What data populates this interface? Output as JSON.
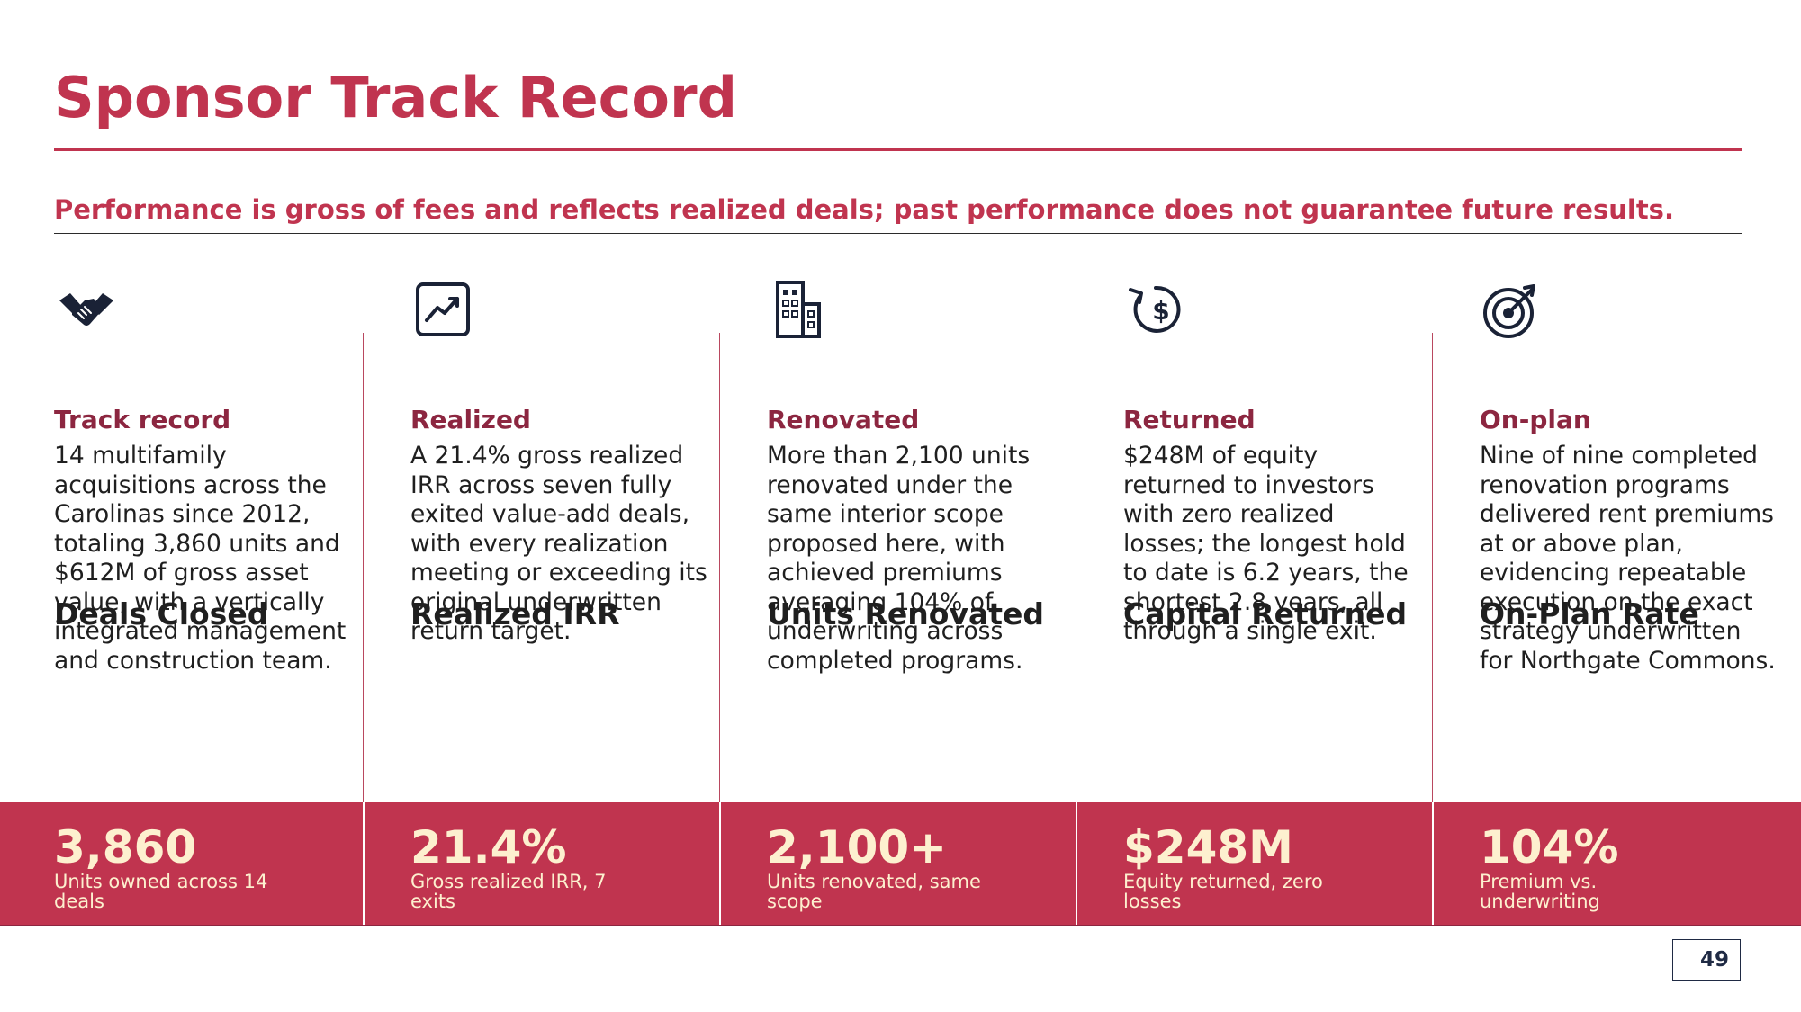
{
  "title": "Sponsor Track Record",
  "subtitle": "Performance is gross of fees and reflects realized deals; past performance does not guarantee future results.",
  "colors": {
    "accent": "#c0344f",
    "accent_dark": "#8c2640",
    "icon": "#1a2236",
    "stat_text": "#fdf0cf"
  },
  "columns": [
    {
      "icon": "handshake-icon",
      "heading": "Deals Closed",
      "subheading": "Track record",
      "body": "14 multifamily acquisitions across the Carolinas since 2012, totaling 3,860 units and $612M of gross asset value, with a vertically integrated management and construction team.",
      "stat_value": "3,860",
      "stat_label": "Units owned across 14 deals"
    },
    {
      "icon": "trend-chart-icon",
      "heading": "Realized IRR",
      "subheading": "Realized",
      "body": "A 21.4% gross realized IRR across seven fully exited value-add deals, with every realization meeting or exceeding its original underwritten return target.",
      "stat_value": "21.4%",
      "stat_label": "Gross realized IRR, 7 exits"
    },
    {
      "icon": "building-icon",
      "heading": "Units Renovated",
      "subheading": "Renovated",
      "body": "More than 2,100 units renovated under the same interior scope proposed here, with achieved premiums averaging 104% of underwriting across completed programs.",
      "stat_value": "2,100+",
      "stat_label": "Units renovated, same scope"
    },
    {
      "icon": "dollar-return-icon",
      "heading": "Capital Returned",
      "subheading": "Returned",
      "body": "$248M of equity returned to investors with zero realized losses; the longest hold to date is 6.2 years, the shortest 2.8 years, all through a single exit.",
      "stat_value": "$248M",
      "stat_label": "Equity returned, zero losses"
    },
    {
      "icon": "target-icon",
      "heading": "On-Plan Rate",
      "subheading": "On-plan",
      "body": "Nine of nine completed renovation programs delivered rent premiums at or above plan, evidencing repeatable execution on the exact strategy underwritten for Northgate Commons.",
      "stat_value": "104%",
      "stat_label": "Premium vs. underwriting"
    }
  ],
  "page_number": "49"
}
